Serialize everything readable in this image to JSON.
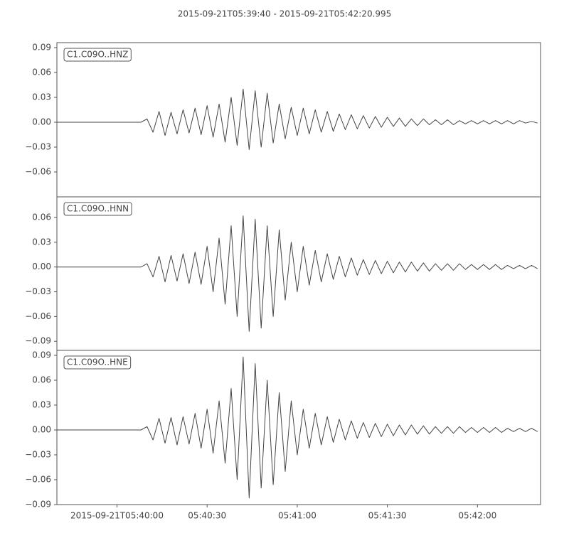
{
  "title": "2015-09-21T05:39:40  -  2015-09-21T05:42:20.995",
  "chart_data": [
    {
      "type": "line",
      "title": "C1.C09O..HNZ",
      "color": "#444444",
      "xlim": [
        "2015-09-21T05:39:40",
        "2015-09-21T05:42:20.995"
      ],
      "ylim": [
        -0.09,
        0.096
      ],
      "yticks": [
        {
          "value": -0.06,
          "label": "−0.06"
        },
        {
          "value": -0.03,
          "label": "−0.03"
        },
        {
          "value": 0,
          "label": "0.00"
        },
        0.03,
        0.06,
        0.09
      ],
      "x": [
        "2015-09-21T05:39:40",
        "2015-09-21T05:39:42",
        "2015-09-21T05:39:44",
        "2015-09-21T05:39:46",
        "2015-09-21T05:39:48",
        "2015-09-21T05:39:50",
        "2015-09-21T05:39:52",
        "2015-09-21T05:39:54",
        "2015-09-21T05:39:56",
        "2015-09-21T05:39:58",
        "2015-09-21T05:40:00",
        "2015-09-21T05:40:02",
        "2015-09-21T05:40:04",
        "2015-09-21T05:40:06",
        "2015-09-21T05:40:08",
        "2015-09-21T05:40:10",
        "2015-09-21T05:40:12",
        "2015-09-21T05:40:14",
        "2015-09-21T05:40:16",
        "2015-09-21T05:40:18",
        "2015-09-21T05:40:20",
        "2015-09-21T05:40:22",
        "2015-09-21T05:40:24",
        "2015-09-21T05:40:26",
        "2015-09-21T05:40:28",
        "2015-09-21T05:40:30",
        "2015-09-21T05:40:32",
        "2015-09-21T05:40:34",
        "2015-09-21T05:40:36",
        "2015-09-21T05:40:38",
        "2015-09-21T05:40:40",
        "2015-09-21T05:40:42",
        "2015-09-21T05:40:44",
        "2015-09-21T05:40:46",
        "2015-09-21T05:40:48",
        "2015-09-21T05:40:50",
        "2015-09-21T05:40:52",
        "2015-09-21T05:40:54",
        "2015-09-21T05:40:56",
        "2015-09-21T05:40:58",
        "2015-09-21T05:41:00",
        "2015-09-21T05:41:02",
        "2015-09-21T05:41:04",
        "2015-09-21T05:41:06",
        "2015-09-21T05:41:08",
        "2015-09-21T05:41:10",
        "2015-09-21T05:41:12",
        "2015-09-21T05:41:14",
        "2015-09-21T05:41:16",
        "2015-09-21T05:41:18",
        "2015-09-21T05:41:20",
        "2015-09-21T05:41:22",
        "2015-09-21T05:41:24",
        "2015-09-21T05:41:26",
        "2015-09-21T05:41:28",
        "2015-09-21T05:41:30",
        "2015-09-21T05:41:32",
        "2015-09-21T05:41:34",
        "2015-09-21T05:41:36",
        "2015-09-21T05:41:38",
        "2015-09-21T05:41:40",
        "2015-09-21T05:41:42",
        "2015-09-21T05:41:44",
        "2015-09-21T05:41:46",
        "2015-09-21T05:41:48",
        "2015-09-21T05:41:50",
        "2015-09-21T05:41:52",
        "2015-09-21T05:41:54",
        "2015-09-21T05:41:56",
        "2015-09-21T05:41:58",
        "2015-09-21T05:42:00",
        "2015-09-21T05:42:02",
        "2015-09-21T05:42:04",
        "2015-09-21T05:42:06",
        "2015-09-21T05:42:08",
        "2015-09-21T05:42:10",
        "2015-09-21T05:42:12",
        "2015-09-21T05:42:14",
        "2015-09-21T05:42:16",
        "2015-09-21T05:42:18",
        "2015-09-21T05:42:20"
      ],
      "values": [
        0,
        0,
        0,
        0,
        0,
        0,
        0,
        0,
        0,
        0,
        0,
        0,
        0,
        0,
        0,
        0.004,
        -0.012,
        0.013,
        -0.016,
        0.012,
        -0.014,
        0.015,
        -0.013,
        0.017,
        -0.015,
        0.02,
        -0.018,
        0.022,
        -0.024,
        0.03,
        -0.028,
        0.04,
        -0.033,
        0.038,
        -0.03,
        0.035,
        -0.025,
        0.022,
        -0.02,
        0.018,
        -0.016,
        0.017,
        -0.014,
        0.015,
        -0.012,
        0.013,
        -0.011,
        0.01,
        -0.009,
        0.009,
        -0.008,
        0.008,
        -0.007,
        0.007,
        -0.006,
        0.006,
        -0.005,
        0.005,
        -0.005,
        0.004,
        -0.004,
        0.004,
        -0.003,
        0.003,
        -0.003,
        0.003,
        -0.003,
        0.002,
        -0.002,
        0.002,
        -0.002,
        0.002,
        -0.002,
        0.002,
        -0.002,
        0.002,
        -0.002,
        0.002,
        -0.001,
        0.001,
        -0.001
      ]
    },
    {
      "type": "line",
      "title": "C1.C09O..HNN",
      "color": "#444444",
      "xlim": [
        "2015-09-21T05:39:40",
        "2015-09-21T05:42:20.995"
      ],
      "ylim": [
        -0.101,
        0.085
      ],
      "yticks": [
        {
          "value": -0.09,
          "label": "−0.09"
        },
        {
          "value": -0.06,
          "label": "−0.06"
        },
        {
          "value": -0.03,
          "label": "−0.03"
        },
        {
          "value": 0,
          "label": "0.00"
        },
        0.03,
        0.06
      ],
      "x": [
        "2015-09-21T05:39:40",
        "2015-09-21T05:39:42",
        "2015-09-21T05:39:44",
        "2015-09-21T05:39:46",
        "2015-09-21T05:39:48",
        "2015-09-21T05:39:50",
        "2015-09-21T05:39:52",
        "2015-09-21T05:39:54",
        "2015-09-21T05:39:56",
        "2015-09-21T05:39:58",
        "2015-09-21T05:40:00",
        "2015-09-21T05:40:02",
        "2015-09-21T05:40:04",
        "2015-09-21T05:40:06",
        "2015-09-21T05:40:08",
        "2015-09-21T05:40:10",
        "2015-09-21T05:40:12",
        "2015-09-21T05:40:14",
        "2015-09-21T05:40:16",
        "2015-09-21T05:40:18",
        "2015-09-21T05:40:20",
        "2015-09-21T05:40:22",
        "2015-09-21T05:40:24",
        "2015-09-21T05:40:26",
        "2015-09-21T05:40:28",
        "2015-09-21T05:40:30",
        "2015-09-21T05:40:32",
        "2015-09-21T05:40:34",
        "2015-09-21T05:40:36",
        "2015-09-21T05:40:38",
        "2015-09-21T05:40:40",
        "2015-09-21T05:40:42",
        "2015-09-21T05:40:44",
        "2015-09-21T05:40:46",
        "2015-09-21T05:40:48",
        "2015-09-21T05:40:50",
        "2015-09-21T05:40:52",
        "2015-09-21T05:40:54",
        "2015-09-21T05:40:56",
        "2015-09-21T05:40:58",
        "2015-09-21T05:41:00",
        "2015-09-21T05:41:02",
        "2015-09-21T05:41:04",
        "2015-09-21T05:41:06",
        "2015-09-21T05:41:08",
        "2015-09-21T05:41:10",
        "2015-09-21T05:41:12",
        "2015-09-21T05:41:14",
        "2015-09-21T05:41:16",
        "2015-09-21T05:41:18",
        "2015-09-21T05:41:20",
        "2015-09-21T05:41:22",
        "2015-09-21T05:41:24",
        "2015-09-21T05:41:26",
        "2015-09-21T05:41:28",
        "2015-09-21T05:41:30",
        "2015-09-21T05:41:32",
        "2015-09-21T05:41:34",
        "2015-09-21T05:41:36",
        "2015-09-21T05:41:38",
        "2015-09-21T05:41:40",
        "2015-09-21T05:41:42",
        "2015-09-21T05:41:44",
        "2015-09-21T05:41:46",
        "2015-09-21T05:41:48",
        "2015-09-21T05:41:50",
        "2015-09-21T05:41:52",
        "2015-09-21T05:41:54",
        "2015-09-21T05:41:56",
        "2015-09-21T05:41:58",
        "2015-09-21T05:42:00",
        "2015-09-21T05:42:02",
        "2015-09-21T05:42:04",
        "2015-09-21T05:42:06",
        "2015-09-21T05:42:08",
        "2015-09-21T05:42:10",
        "2015-09-21T05:42:12",
        "2015-09-21T05:42:14",
        "2015-09-21T05:42:16",
        "2015-09-21T05:42:18",
        "2015-09-21T05:42:20"
      ],
      "values": [
        0,
        0,
        0,
        0,
        0,
        0,
        0,
        0,
        0,
        0,
        0,
        0,
        0,
        0,
        0,
        0.004,
        -0.012,
        0.013,
        -0.018,
        0.014,
        -0.017,
        0.016,
        -0.02,
        0.018,
        -0.021,
        0.025,
        -0.03,
        0.035,
        -0.045,
        0.05,
        -0.06,
        0.062,
        -0.078,
        0.058,
        -0.074,
        0.05,
        -0.06,
        0.045,
        -0.04,
        0.03,
        -0.03,
        0.025,
        -0.022,
        0.02,
        -0.018,
        0.016,
        -0.015,
        0.013,
        -0.012,
        0.011,
        -0.01,
        0.009,
        -0.009,
        0.008,
        -0.008,
        0.007,
        -0.007,
        0.006,
        -0.006,
        0.006,
        -0.005,
        0.005,
        -0.005,
        0.004,
        -0.004,
        0.004,
        -0.004,
        0.004,
        -0.003,
        0.003,
        -0.003,
        0.003,
        -0.003,
        0.003,
        -0.003,
        0.002,
        -0.002,
        0.002,
        -0.002,
        0.002,
        -0.002
      ]
    },
    {
      "type": "line",
      "title": "C1.C09O..HNE",
      "color": "#444444",
      "xlim": [
        "2015-09-21T05:39:40",
        "2015-09-21T05:42:20.995"
      ],
      "ylim": [
        -0.09,
        0.096
      ],
      "yticks": [
        {
          "value": -0.09,
          "label": "−0.09"
        },
        {
          "value": -0.06,
          "label": "−0.06"
        },
        {
          "value": -0.03,
          "label": "−0.03"
        },
        {
          "value": 0,
          "label": "0.00"
        },
        0.03,
        0.06,
        0.09
      ],
      "xticks": [
        {
          "value": "2015-09-21T05:40:00",
          "label": "2015-09-21T05:40:00"
        },
        {
          "value": "2015-09-21T05:40:30",
          "label": "05:40:30"
        },
        {
          "value": "2015-09-21T05:41:00",
          "label": "05:41:00"
        },
        {
          "value": "2015-09-21T05:41:30",
          "label": "05:41:30"
        },
        {
          "value": "2015-09-21T05:42:00",
          "label": "05:42:00"
        }
      ],
      "x": [
        "2015-09-21T05:39:40",
        "2015-09-21T05:39:42",
        "2015-09-21T05:39:44",
        "2015-09-21T05:39:46",
        "2015-09-21T05:39:48",
        "2015-09-21T05:39:50",
        "2015-09-21T05:39:52",
        "2015-09-21T05:39:54",
        "2015-09-21T05:39:56",
        "2015-09-21T05:39:58",
        "2015-09-21T05:40:00",
        "2015-09-21T05:40:02",
        "2015-09-21T05:40:04",
        "2015-09-21T05:40:06",
        "2015-09-21T05:40:08",
        "2015-09-21T05:40:10",
        "2015-09-21T05:40:12",
        "2015-09-21T05:40:14",
        "2015-09-21T05:40:16",
        "2015-09-21T05:40:18",
        "2015-09-21T05:40:20",
        "2015-09-21T05:40:22",
        "2015-09-21T05:40:24",
        "2015-09-21T05:40:26",
        "2015-09-21T05:40:28",
        "2015-09-21T05:40:30",
        "2015-09-21T05:40:32",
        "2015-09-21T05:40:34",
        "2015-09-21T05:40:36",
        "2015-09-21T05:40:38",
        "2015-09-21T05:40:40",
        "2015-09-21T05:40:42",
        "2015-09-21T05:40:44",
        "2015-09-21T05:40:46",
        "2015-09-21T05:40:48",
        "2015-09-21T05:40:50",
        "2015-09-21T05:40:52",
        "2015-09-21T05:40:54",
        "2015-09-21T05:40:56",
        "2015-09-21T05:40:58",
        "2015-09-21T05:41:00",
        "2015-09-21T05:41:02",
        "2015-09-21T05:41:04",
        "2015-09-21T05:41:06",
        "2015-09-21T05:41:08",
        "2015-09-21T05:41:10",
        "2015-09-21T05:41:12",
        "2015-09-21T05:41:14",
        "2015-09-21T05:41:16",
        "2015-09-21T05:41:18",
        "2015-09-21T05:41:20",
        "2015-09-21T05:41:22",
        "2015-09-21T05:41:24",
        "2015-09-21T05:41:26",
        "2015-09-21T05:41:28",
        "2015-09-21T05:41:30",
        "2015-09-21T05:41:32",
        "2015-09-21T05:41:34",
        "2015-09-21T05:41:36",
        "2015-09-21T05:41:38",
        "2015-09-21T05:41:40",
        "2015-09-21T05:41:42",
        "2015-09-21T05:41:44",
        "2015-09-21T05:41:46",
        "2015-09-21T05:41:48",
        "2015-09-21T05:41:50",
        "2015-09-21T05:41:52",
        "2015-09-21T05:41:54",
        "2015-09-21T05:41:56",
        "2015-09-21T05:41:58",
        "2015-09-21T05:42:00",
        "2015-09-21T05:42:02",
        "2015-09-21T05:42:04",
        "2015-09-21T05:42:06",
        "2015-09-21T05:42:08",
        "2015-09-21T05:42:10",
        "2015-09-21T05:42:12",
        "2015-09-21T05:42:14",
        "2015-09-21T05:42:16",
        "2015-09-21T05:42:18",
        "2015-09-21T05:42:20"
      ],
      "values": [
        0,
        0,
        0,
        0,
        0,
        0,
        0,
        0,
        0,
        0,
        0,
        0,
        0,
        0,
        0,
        0.004,
        -0.012,
        0.014,
        -0.016,
        0.015,
        -0.018,
        0.016,
        -0.017,
        0.02,
        -0.022,
        0.025,
        -0.028,
        0.035,
        -0.04,
        0.05,
        -0.06,
        0.088,
        -0.082,
        0.08,
        -0.07,
        0.06,
        -0.066,
        0.045,
        -0.05,
        0.035,
        -0.03,
        0.025,
        -0.022,
        0.02,
        -0.018,
        0.016,
        -0.015,
        0.013,
        -0.012,
        0.011,
        -0.01,
        0.009,
        -0.009,
        0.008,
        -0.008,
        0.007,
        -0.007,
        0.006,
        -0.006,
        0.006,
        -0.005,
        0.005,
        -0.005,
        0.004,
        -0.004,
        0.004,
        -0.004,
        0.004,
        -0.003,
        0.003,
        -0.003,
        0.003,
        -0.003,
        0.003,
        -0.003,
        0.002,
        -0.002,
        0.002,
        -0.002,
        0.002,
        -0.002
      ]
    }
  ]
}
